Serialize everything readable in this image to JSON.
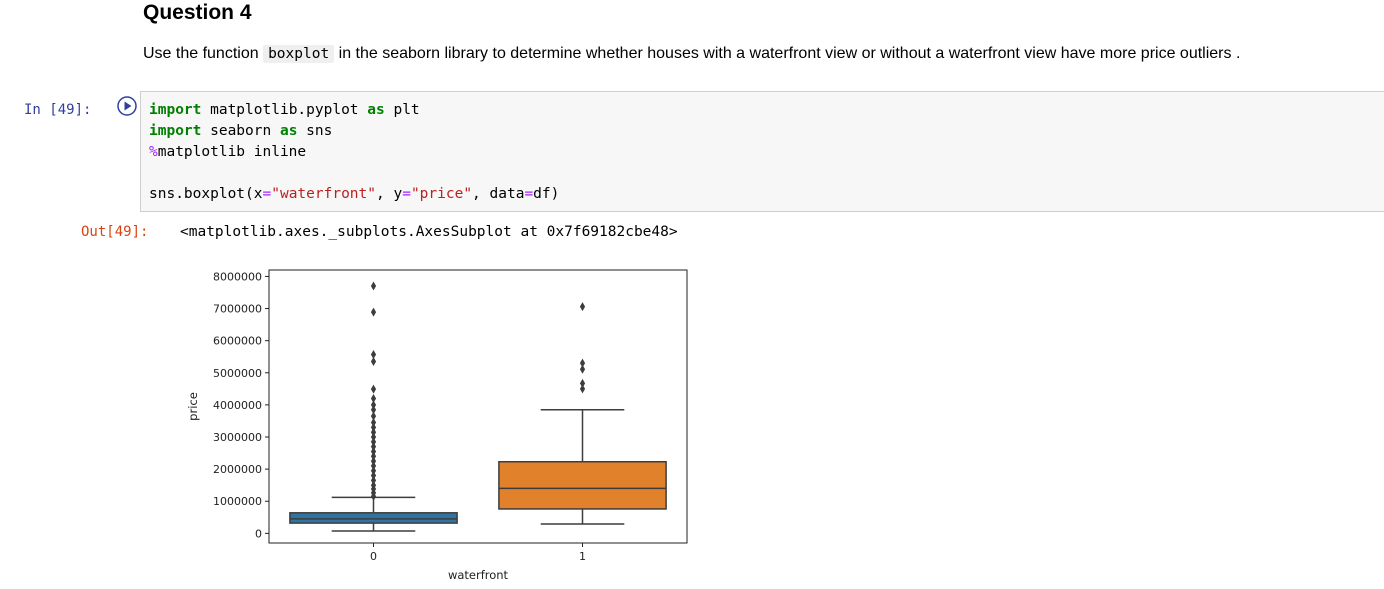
{
  "markdown": {
    "heading": "Question 4",
    "para_before": "Use the function ",
    "para_code": "boxplot",
    "para_after": " in the seaborn library to determine whether houses with a waterfront view or without a waterfront view have more price outliers ."
  },
  "code_cell": {
    "prompt": "In [49]:",
    "lines": [
      [
        [
          "kw",
          "import"
        ],
        [
          "plain",
          " matplotlib.pyplot "
        ],
        [
          "kw",
          "as"
        ],
        [
          "plain",
          " plt"
        ]
      ],
      [
        [
          "kw",
          "import"
        ],
        [
          "plain",
          " seaborn "
        ],
        [
          "kw",
          "as"
        ],
        [
          "plain",
          " sns"
        ]
      ],
      [
        [
          "mg",
          "%"
        ],
        [
          "plain",
          "matplotlib inline"
        ]
      ],
      [],
      [
        [
          "plain",
          "sns.boxplot(x"
        ],
        [
          "op",
          "="
        ],
        [
          "str",
          "\"waterfront\""
        ],
        [
          "plain",
          ", y"
        ],
        [
          "op",
          "="
        ],
        [
          "str",
          "\"price\""
        ],
        [
          "plain",
          ", data"
        ],
        [
          "op",
          "="
        ],
        [
          "plain",
          "df)"
        ]
      ]
    ]
  },
  "output": {
    "prompt": "Out[49]:",
    "text": "<matplotlib.axes._subplots.AxesSubplot at 0x7f69182cbe48>"
  },
  "chart_data": {
    "type": "box",
    "xlabel": "waterfront",
    "ylabel": "price",
    "ylim": [
      -300000,
      8200000
    ],
    "yticks": [
      0,
      1000000,
      2000000,
      3000000,
      4000000,
      5000000,
      6000000,
      7000000,
      8000000
    ],
    "ytick_labels": [
      "0",
      "1000000",
      "2000000",
      "3000000",
      "4000000",
      "5000000",
      "6000000",
      "7000000",
      "8000000"
    ],
    "categories": [
      "0",
      "1"
    ],
    "colors": [
      "#3274a1",
      "#e1812c"
    ],
    "boxes": [
      {
        "category": "0",
        "whisker_low": 75000,
        "q1": 320000,
        "median": 450000,
        "q3": 640000,
        "whisker_high": 1120000,
        "outliers": [
          7700000,
          6890000,
          5570000,
          5350000,
          4490000,
          4200000,
          4000000,
          3850000,
          3650000,
          3450000,
          3300000,
          3150000,
          3000000,
          2850000,
          2700000,
          2550000,
          2400000,
          2250000,
          2100000,
          1950000,
          1800000,
          1650000,
          1500000,
          1380000,
          1260000,
          1150000
        ]
      },
      {
        "category": "1",
        "whisker_low": 290000,
        "q1": 760000,
        "median": 1400000,
        "q3": 2230000,
        "whisker_high": 3850000,
        "outliers": [
          7060000,
          5300000,
          5110000,
          4670000,
          4500000
        ]
      }
    ]
  }
}
